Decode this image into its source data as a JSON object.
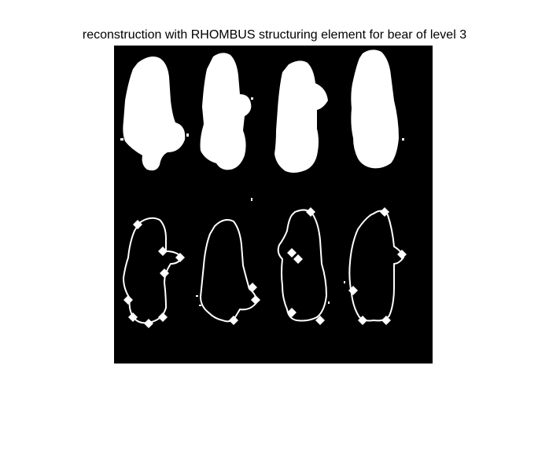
{
  "figure": {
    "title": "reconstruction with RHOMBUS structuring element for bear of level 3"
  },
  "image": {
    "background_color": "#000000",
    "foreground_color": "#ffffff",
    "panels": [
      {
        "row": "top",
        "kind": "filled-silhouette",
        "count": 4
      },
      {
        "row": "bottom",
        "kind": "outline-contour",
        "count": 4
      }
    ]
  }
}
